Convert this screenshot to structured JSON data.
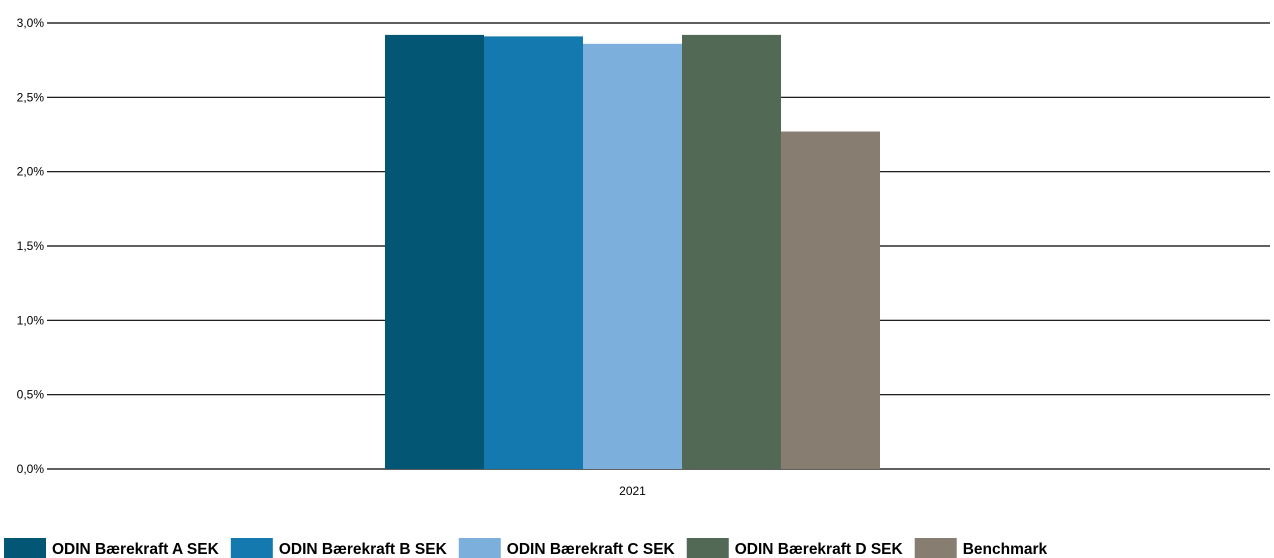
{
  "chart_data": {
    "type": "bar",
    "categories": [
      "2021"
    ],
    "series": [
      {
        "name": "ODIN Bærekraft A SEK",
        "values": [
          2.92
        ],
        "color": "#035775"
      },
      {
        "name": "ODIN Bærekraft B SEK",
        "values": [
          2.91
        ],
        "color": "#1379ae"
      },
      {
        "name": "ODIN Bærekraft C SEK",
        "values": [
          2.86
        ],
        "color": "#7dafdd"
      },
      {
        "name": "ODIN Bærekraft D SEK",
        "values": [
          2.92
        ],
        "color": "#516955"
      },
      {
        "name": "Benchmark",
        "values": [
          2.27
        ],
        "color": "#877d71"
      }
    ],
    "ylim": [
      0,
      3.0
    ],
    "yticks": [
      "0,0%",
      "0,5%",
      "1,0%",
      "1,5%",
      "2,0%",
      "2,5%",
      "3,0%"
    ],
    "grid": true,
    "legend_position": "bottom"
  }
}
